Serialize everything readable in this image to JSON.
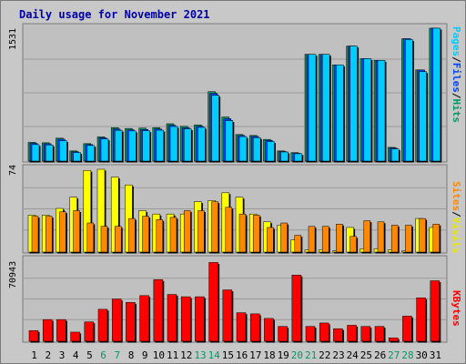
{
  "title": "Daily usage for November 2021",
  "colors": {
    "pages": "#00ccff",
    "files": "#0044ff",
    "hits": "#009966",
    "sites": "#ff8800",
    "visits": "#ffff00",
    "kbytes": "#ff0000",
    "weekend": "#009966",
    "weekday": "#000000",
    "background": "#c0c0c0"
  },
  "right_labels": {
    "top": [
      "Pages",
      "Files",
      "Hits"
    ],
    "middle": [
      "Sites",
      "Visits"
    ],
    "bottom": [
      "KBytes"
    ]
  },
  "chart_data": [
    {
      "type": "bar",
      "title": "Daily usage for November 2021",
      "ymax_label": "1531",
      "ylim": [
        0,
        1531
      ],
      "grid": true,
      "categories": [
        "1",
        "2",
        "3",
        "4",
        "5",
        "6",
        "7",
        "8",
        "9",
        "10",
        "11",
        "12",
        "13",
        "14",
        "15",
        "16",
        "17",
        "18",
        "19",
        "20",
        "21",
        "22",
        "23",
        "24",
        "25",
        "26",
        "27",
        "28",
        "30",
        "31"
      ],
      "weekend": [
        "6",
        "7",
        "13",
        "14",
        "20",
        "21",
        "27",
        "28"
      ],
      "series": [
        {
          "name": "Hits",
          "values": [
            216,
            211,
            264,
            117,
            201,
            279,
            385,
            376,
            380,
            386,
            430,
            401,
            417,
            800,
            508,
            306,
            295,
            250,
            117,
            98,
            1230,
            1230,
            1108,
            1325,
            1180,
            1160,
            158,
            1410,
            1050,
            1531
          ]
        },
        {
          "name": "Files",
          "values": [
            205,
            200,
            252,
            107,
            190,
            268,
            368,
            360,
            364,
            369,
            412,
            384,
            400,
            780,
            488,
            295,
            284,
            238,
            110,
            90,
            1230,
            1230,
            1108,
            1325,
            1180,
            1160,
            150,
            1410,
            1050,
            1531
          ]
        },
        {
          "name": "Pages",
          "values": [
            190,
            186,
            235,
            98,
            180,
            255,
            355,
            347,
            350,
            356,
            398,
            372,
            388,
            758,
            466,
            282,
            270,
            225,
            105,
            85,
            1230,
            1230,
            1108,
            1325,
            1180,
            1160,
            140,
            1400,
            1030,
            1531
          ]
        }
      ]
    },
    {
      "type": "bar",
      "ymax_label": "74",
      "ylim": [
        0,
        74
      ],
      "grid": true,
      "categories": [
        "1",
        "2",
        "3",
        "4",
        "5",
        "6",
        "7",
        "8",
        "9",
        "10",
        "11",
        "12",
        "13",
        "14",
        "15",
        "16",
        "17",
        "18",
        "19",
        "20",
        "21",
        "22",
        "23",
        "24",
        "25",
        "26",
        "27",
        "28",
        "30",
        "31"
      ],
      "series": [
        {
          "name": "Visits",
          "values": [
            33,
            33,
            39,
            49,
            73,
            74,
            67,
            60,
            37,
            34,
            34,
            34,
            45,
            46,
            53,
            49,
            34,
            27,
            24,
            11,
            2,
            2,
            1,
            22,
            3,
            3,
            2,
            1,
            30,
            22
          ]
        },
        {
          "name": "Sites",
          "values": [
            32,
            32,
            36,
            37,
            26,
            23,
            23,
            30,
            32,
            29,
            31,
            37,
            37,
            45,
            40,
            34,
            33,
            22,
            26,
            15,
            23,
            23,
            25,
            14,
            28,
            27,
            24,
            24,
            30,
            25
          ]
        }
      ]
    },
    {
      "type": "bar",
      "ymax_label": "70943",
      "ylim": [
        0,
        70943
      ],
      "grid": true,
      "categories": [
        "1",
        "2",
        "3",
        "4",
        "5",
        "6",
        "7",
        "8",
        "9",
        "10",
        "11",
        "12",
        "13",
        "14",
        "15",
        "16",
        "17",
        "18",
        "19",
        "20",
        "21",
        "22",
        "23",
        "24",
        "25",
        "26",
        "27",
        "28",
        "30",
        "31"
      ],
      "series": [
        {
          "name": "KBytes",
          "values": [
            9300,
            19000,
            19000,
            8000,
            17000,
            28000,
            37000,
            34000,
            40000,
            54000,
            41000,
            39000,
            39000,
            69000,
            45000,
            25000,
            24000,
            20000,
            13000,
            58000,
            13000,
            16000,
            11000,
            14000,
            13000,
            13000,
            3000,
            22000,
            38000,
            53000
          ]
        }
      ]
    }
  ]
}
